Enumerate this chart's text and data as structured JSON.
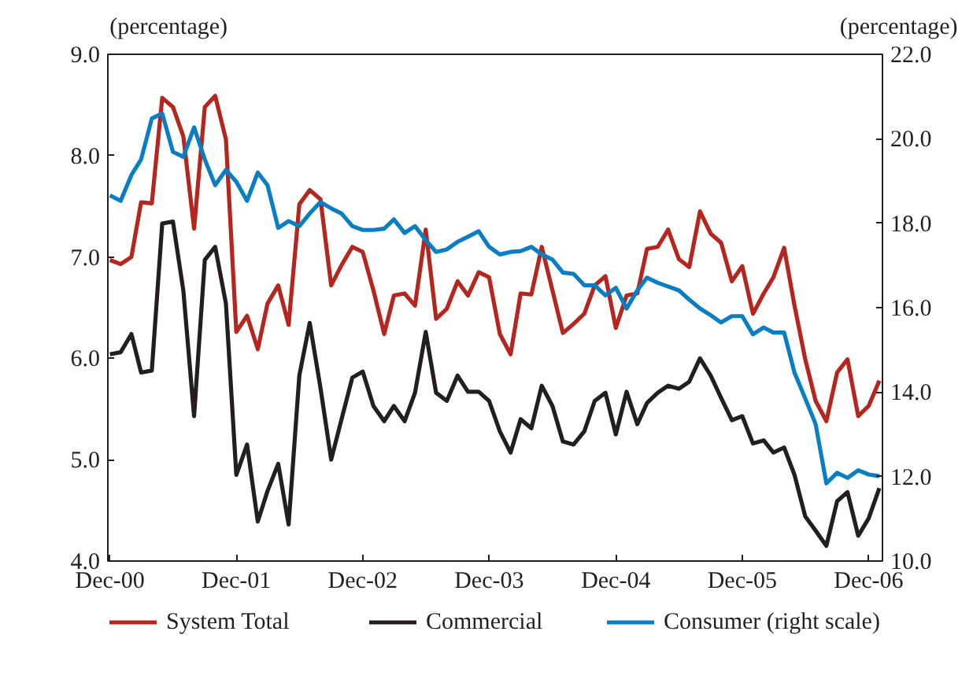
{
  "chart_data": {
    "type": "line",
    "ylabel": "(percentage)",
    "y2label": "(percentage)",
    "x": [
      "2000-12",
      "2001-01",
      "2001-02",
      "2001-03",
      "2001-04",
      "2001-05",
      "2001-06",
      "2001-07",
      "2001-08",
      "2001-09",
      "2001-10",
      "2001-11",
      "2001-12",
      "2002-01",
      "2002-02",
      "2002-03",
      "2002-04",
      "2002-05",
      "2002-06",
      "2002-07",
      "2002-08",
      "2002-09",
      "2002-10",
      "2002-11",
      "2002-12",
      "2003-01",
      "2003-02",
      "2003-03",
      "2003-04",
      "2003-05",
      "2003-06",
      "2003-07",
      "2003-08",
      "2003-09",
      "2003-10",
      "2003-11",
      "2003-12",
      "2004-01",
      "2004-02",
      "2004-03",
      "2004-04",
      "2004-05",
      "2004-06",
      "2004-07",
      "2004-08",
      "2004-09",
      "2004-10",
      "2004-11",
      "2004-12",
      "2005-01",
      "2005-02",
      "2005-03",
      "2005-04",
      "2005-05",
      "2005-06",
      "2005-07",
      "2005-08",
      "2005-09",
      "2005-10",
      "2005-11",
      "2005-12",
      "2006-01",
      "2006-02",
      "2006-03",
      "2006-04",
      "2006-05",
      "2006-06",
      "2006-07",
      "2006-08",
      "2006-09",
      "2006-10",
      "2006-11",
      "2006-12",
      "2007-01"
    ],
    "xlim": [
      "2000-11-25",
      "2007-01-10"
    ],
    "xticks": [
      {
        "value": "2000-12",
        "label": "Dec-00"
      },
      {
        "value": "2001-12",
        "label": "Dec-01"
      },
      {
        "value": "2002-12",
        "label": "Dec-02"
      },
      {
        "value": "2003-12",
        "label": "Dec-03"
      },
      {
        "value": "2004-12",
        "label": "Dec-04"
      },
      {
        "value": "2005-12",
        "label": "Dec-05"
      },
      {
        "value": "2006-12",
        "label": "Dec-06"
      }
    ],
    "ylim": [
      4.0,
      9.0
    ],
    "yticks": [
      {
        "value": 4,
        "label": "4.0"
      },
      {
        "value": 5,
        "label": "5.0"
      },
      {
        "value": 6,
        "label": "6.0"
      },
      {
        "value": 7,
        "label": "7.0"
      },
      {
        "value": 8,
        "label": "8.0"
      },
      {
        "value": 9,
        "label": "9.0"
      }
    ],
    "y2lim": [
      10.0,
      22.0
    ],
    "y2ticks": [
      {
        "value": 10,
        "label": "10.0"
      },
      {
        "value": 12,
        "label": "12.0"
      },
      {
        "value": 14,
        "label": "14.0"
      },
      {
        "value": 16,
        "label": "16.0"
      },
      {
        "value": 18,
        "label": "18.0"
      },
      {
        "value": 20,
        "label": "20.0"
      },
      {
        "value": 22,
        "label": "22.0"
      }
    ],
    "grid": false,
    "legend": "bottom",
    "line_style": "solid",
    "series": [
      {
        "name": "System Total",
        "color": "#b5261e",
        "values": [
          6.97,
          6.93,
          7.0,
          7.54,
          7.53,
          8.57,
          8.48,
          8.19,
          7.28,
          8.48,
          8.59,
          8.16,
          6.26,
          6.42,
          6.09,
          6.54,
          6.72,
          6.33,
          7.52,
          7.66,
          7.57,
          6.72,
          6.92,
          7.1,
          7.05,
          6.67,
          6.24,
          6.62,
          6.64,
          6.52,
          7.27,
          6.39,
          6.49,
          6.76,
          6.62,
          6.85,
          6.8,
          6.24,
          6.04,
          6.64,
          6.63,
          7.1,
          6.67,
          6.25,
          6.34,
          6.44,
          6.72,
          6.81,
          6.3,
          6.62,
          6.64,
          7.08,
          7.1,
          7.27,
          6.98,
          6.9,
          7.45,
          7.23,
          7.14,
          6.76,
          6.91,
          6.44,
          6.64,
          6.8,
          7.09,
          6.52,
          5.99,
          5.58,
          5.38,
          5.86,
          5.99,
          5.43,
          5.53,
          5.78
        ]
      },
      {
        "name": "Commercial",
        "color": "#231f20",
        "values": [
          6.04,
          6.06,
          6.24,
          5.86,
          5.88,
          7.33,
          7.35,
          6.67,
          5.43,
          6.97,
          7.1,
          6.54,
          4.85,
          5.15,
          4.39,
          4.69,
          4.96,
          4.36,
          5.83,
          6.35,
          5.71,
          5.0,
          5.4,
          5.81,
          5.87,
          5.53,
          5.38,
          5.53,
          5.38,
          5.66,
          6.26,
          5.66,
          5.58,
          5.83,
          5.67,
          5.67,
          5.58,
          5.28,
          5.07,
          5.4,
          5.31,
          5.73,
          5.53,
          5.18,
          5.15,
          5.28,
          5.58,
          5.66,
          5.25,
          5.67,
          5.35,
          5.56,
          5.66,
          5.73,
          5.7,
          5.77,
          6.0,
          5.83,
          5.61,
          5.39,
          5.43,
          5.16,
          5.19,
          5.07,
          5.12,
          4.85,
          4.44,
          4.3,
          4.15,
          4.59,
          4.68,
          4.25,
          4.42,
          4.72
        ]
      },
      {
        "name": "Consumer (right scale)",
        "color": "#0a7ec2",
        "axis": "y2",
        "values": [
          18.66,
          18.53,
          19.14,
          19.51,
          20.48,
          20.6,
          19.69,
          19.57,
          20.27,
          19.51,
          18.9,
          19.26,
          18.98,
          18.53,
          19.2,
          18.9,
          17.89,
          18.05,
          17.93,
          18.23,
          18.5,
          18.35,
          18.23,
          17.93,
          17.84,
          17.84,
          17.87,
          18.09,
          17.77,
          17.93,
          17.6,
          17.32,
          17.38,
          17.56,
          17.68,
          17.81,
          17.44,
          17.26,
          17.32,
          17.34,
          17.44,
          17.26,
          17.14,
          16.83,
          16.8,
          16.53,
          16.53,
          16.29,
          16.47,
          15.98,
          16.41,
          16.71,
          16.59,
          16.5,
          16.41,
          16.19,
          15.98,
          15.82,
          15.65,
          15.8,
          15.8,
          15.37,
          15.53,
          15.41,
          15.41,
          14.46,
          13.85,
          13.24,
          11.84,
          12.09,
          11.97,
          12.15,
          12.05,
          12.01
        ]
      }
    ]
  }
}
